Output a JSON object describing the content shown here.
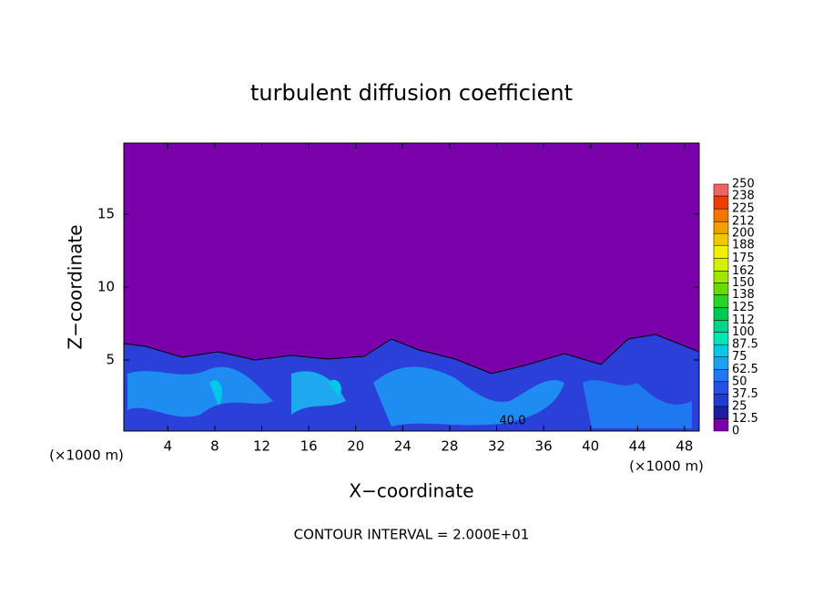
{
  "chart_data": {
    "type": "contour",
    "title": "turbulent diffusion coefficient",
    "x_label": "X−coordinate",
    "y_label": "Z−coordinate",
    "x_unit": "(×1000 m)",
    "y_unit": "(×1000 m)",
    "footer": "CONTOUR INTERVAL = 2.000E+01",
    "contour_label": "40.0",
    "xlim": [
      0.25,
      49.25
    ],
    "ylim": [
      0.125,
      19.875
    ],
    "xticks": [
      4,
      8,
      12,
      16,
      20,
      24,
      28,
      32,
      36,
      40,
      44,
      48
    ],
    "yticks": [
      5,
      10,
      15
    ],
    "colorbar_ticks": [
      0,
      12.5,
      25,
      37.5,
      50,
      62.5,
      75,
      87.5,
      100,
      112,
      125,
      138,
      150,
      162,
      175,
      188,
      200,
      212,
      225,
      238,
      250
    ],
    "colorbar_colors": [
      "#7a00aa",
      "#1e1ea0",
      "#1e3cd2",
      "#2850e6",
      "#1e78f0",
      "#1ea0f0",
      "#00c8e6",
      "#00e6b4",
      "#00d28c",
      "#00c850",
      "#28d228",
      "#64dc00",
      "#a0e600",
      "#d2f000",
      "#f0f000",
      "#f0c800",
      "#f0a000",
      "#f07800",
      "#f03c00",
      "#f06464"
    ]
  }
}
